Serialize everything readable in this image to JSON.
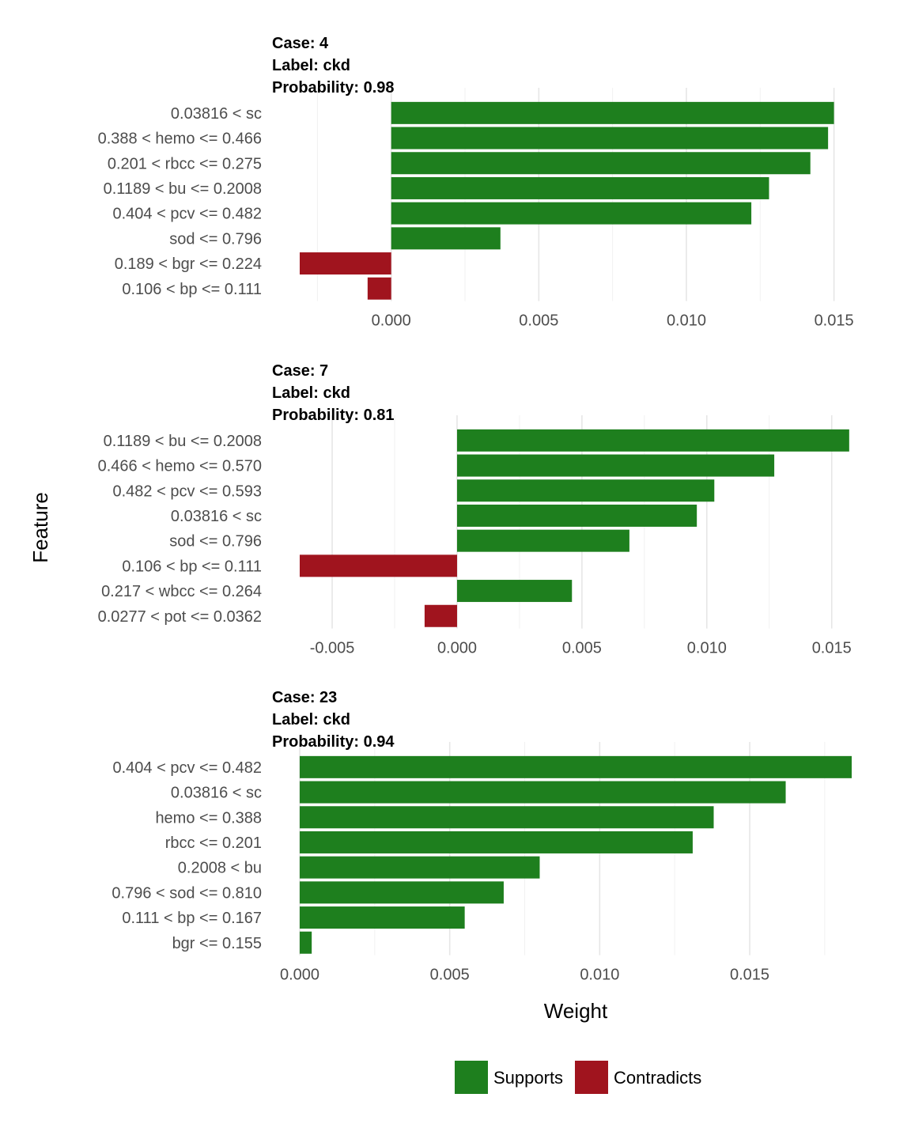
{
  "chart_data": {
    "type": "bar",
    "orientation": "horizontal",
    "xlabel": "Weight",
    "ylabel": "Feature",
    "colors": {
      "Supports": "#1e7f1e",
      "Contradicts": "#a0141e"
    },
    "legend": {
      "position": "bottom",
      "entries": [
        "Supports",
        "Contradicts"
      ]
    },
    "grid": true,
    "panels": [
      {
        "title_lines": [
          "Case: 4",
          "Label: ckd",
          "Probability: 0.98"
        ],
        "xlim": [
          -0.0031,
          0.0156
        ],
        "xticks": [
          0.0,
          0.005,
          0.01,
          0.015
        ],
        "xtick_labels": [
          "0.000",
          "0.005",
          "0.010",
          "0.015"
        ],
        "bars": [
          {
            "feature": "0.03816 < sc",
            "value": 0.015,
            "type": "Supports"
          },
          {
            "feature": "0.388 < hemo <= 0.466",
            "value": 0.0148,
            "type": "Supports"
          },
          {
            "feature": "0.201 < rbcc <= 0.275",
            "value": 0.0142,
            "type": "Supports"
          },
          {
            "feature": "0.1189 < bu <= 0.2008",
            "value": 0.0128,
            "type": "Supports"
          },
          {
            "feature": "0.404 < pcv <= 0.482",
            "value": 0.0122,
            "type": "Supports"
          },
          {
            "feature": "sod <= 0.796",
            "value": 0.0037,
            "type": "Supports"
          },
          {
            "feature": "0.189 < bgr <= 0.224",
            "value": -0.0031,
            "type": "Contradicts"
          },
          {
            "feature": "0.106 < bp <= 0.111",
            "value": -0.0008,
            "type": "Contradicts"
          }
        ]
      },
      {
        "title_lines": [
          "Case: 7",
          "Label: ckd",
          "Probability: 0.81"
        ],
        "xlim": [
          -0.0063,
          0.0158
        ],
        "xticks": [
          -0.005,
          0.0,
          0.005,
          0.01,
          0.015
        ],
        "xtick_labels": [
          "-0.005",
          "0.000",
          "0.005",
          "0.010",
          "0.015"
        ],
        "bars": [
          {
            "feature": "0.1189 < bu <= 0.2008",
            "value": 0.0157,
            "type": "Supports"
          },
          {
            "feature": "0.466 < hemo <= 0.570",
            "value": 0.0127,
            "type": "Supports"
          },
          {
            "feature": "0.482 < pcv <= 0.593",
            "value": 0.0103,
            "type": "Supports"
          },
          {
            "feature": "0.03816 < sc",
            "value": 0.0096,
            "type": "Supports"
          },
          {
            "feature": "sod <= 0.796",
            "value": 0.0069,
            "type": "Supports"
          },
          {
            "feature": "0.106 < bp <= 0.111",
            "value": -0.0063,
            "type": "Contradicts"
          },
          {
            "feature": "0.217 < wbcc <= 0.264",
            "value": 0.0046,
            "type": "Supports"
          },
          {
            "feature": "0.0277 < pot <= 0.0362",
            "value": -0.0013,
            "type": "Contradicts"
          }
        ]
      },
      {
        "title_lines": [
          "Case: 23",
          "Label: ckd",
          "Probability: 0.94"
        ],
        "xlim": [
          0.0,
          0.0184
        ],
        "xticks": [
          0.0,
          0.005,
          0.01,
          0.015
        ],
        "xtick_labels": [
          "0.000",
          "0.005",
          "0.010",
          "0.015"
        ],
        "bars": [
          {
            "feature": "0.404 < pcv <= 0.482",
            "value": 0.0184,
            "type": "Supports"
          },
          {
            "feature": "0.03816 < sc",
            "value": 0.0162,
            "type": "Supports"
          },
          {
            "feature": "hemo <= 0.388",
            "value": 0.0138,
            "type": "Supports"
          },
          {
            "feature": "rbcc <= 0.201",
            "value": 0.0131,
            "type": "Supports"
          },
          {
            "feature": "0.2008 < bu",
            "value": 0.008,
            "type": "Supports"
          },
          {
            "feature": "0.796 < sod <= 0.810",
            "value": 0.0068,
            "type": "Supports"
          },
          {
            "feature": "0.111 < bp <= 0.167",
            "value": 0.0055,
            "type": "Supports"
          },
          {
            "feature": "bgr <= 0.155",
            "value": 0.0004,
            "type": "Supports"
          }
        ]
      }
    ]
  }
}
